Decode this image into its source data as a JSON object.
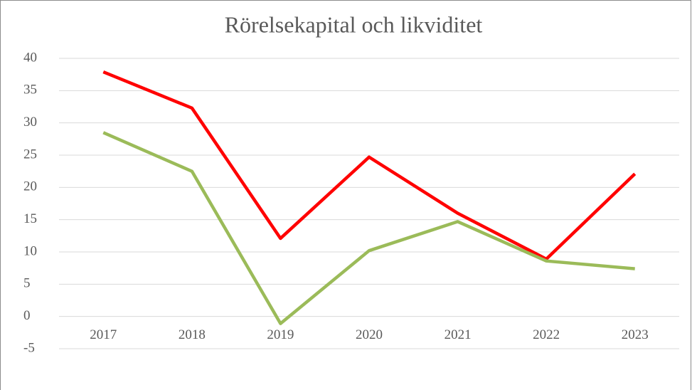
{
  "chart_data": {
    "type": "line",
    "title": "Rörelsekapital och likviditet",
    "categories": [
      "2017",
      "2018",
      "2019",
      "2020",
      "2021",
      "2022",
      "2023"
    ],
    "series": [
      {
        "color": "#ff0000",
        "values": [
          37.9,
          32.3,
          12.1,
          24.7,
          16.0,
          8.9,
          22.1
        ]
      },
      {
        "color": "#9bbb59",
        "values": [
          28.5,
          22.5,
          -1.1,
          10.2,
          14.7,
          8.6,
          7.4
        ]
      }
    ],
    "ylim": [
      -5,
      40
    ],
    "yticks": [
      -5,
      0,
      5,
      10,
      15,
      20,
      25,
      30,
      35,
      40
    ],
    "grid": true
  }
}
